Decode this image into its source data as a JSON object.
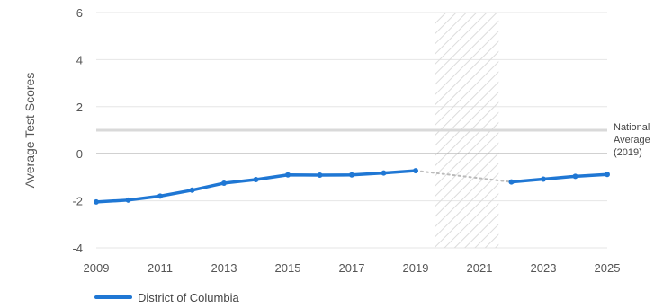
{
  "chart_data": {
    "type": "line",
    "ylabel": "Average Test Scores",
    "xlabel": "",
    "xlim": [
      2009,
      2025
    ],
    "ylim": [
      -4,
      6
    ],
    "x_ticks": [
      "2009",
      "2011",
      "2013",
      "2015",
      "2017",
      "2019",
      "2021",
      "2023",
      "2025"
    ],
    "y_ticks": [
      "6",
      "4",
      "2",
      "0",
      "-2",
      "-4"
    ],
    "grid": "horizontal",
    "shaded_period": {
      "from": 2019.6,
      "to": 2021.6,
      "pattern": "diagonal-hatch"
    },
    "reference_line": {
      "value": 1.0,
      "label": [
        "National",
        "Average",
        "(2019)"
      ],
      "color": "#d9d9d9"
    },
    "zero_line": {
      "value": 0,
      "color": "#888888"
    },
    "series": [
      {
        "name": "District of Columbia",
        "color": "#1f77d4",
        "segments": [
          {
            "x": [
              2009,
              2010,
              2011,
              2012,
              2013,
              2014,
              2015,
              2016,
              2017,
              2018,
              2019
            ],
            "y": [
              -2.05,
              -1.97,
              -1.8,
              -1.55,
              -1.25,
              -1.1,
              -0.9,
              -0.91,
              -0.9,
              -0.82,
              -0.72
            ]
          },
          {
            "x": [
              2022,
              2023,
              2024,
              2025
            ],
            "y": [
              -1.2,
              -1.08,
              -0.96,
              -0.88
            ]
          }
        ],
        "gap_connector": {
          "x": [
            2019,
            2022
          ],
          "y": [
            -0.72,
            -1.2
          ],
          "style": "dotted",
          "color": "#bbbbbb"
        }
      }
    ],
    "legend": {
      "placement": "bottom-left",
      "entries": [
        "District of Columbia"
      ]
    }
  }
}
